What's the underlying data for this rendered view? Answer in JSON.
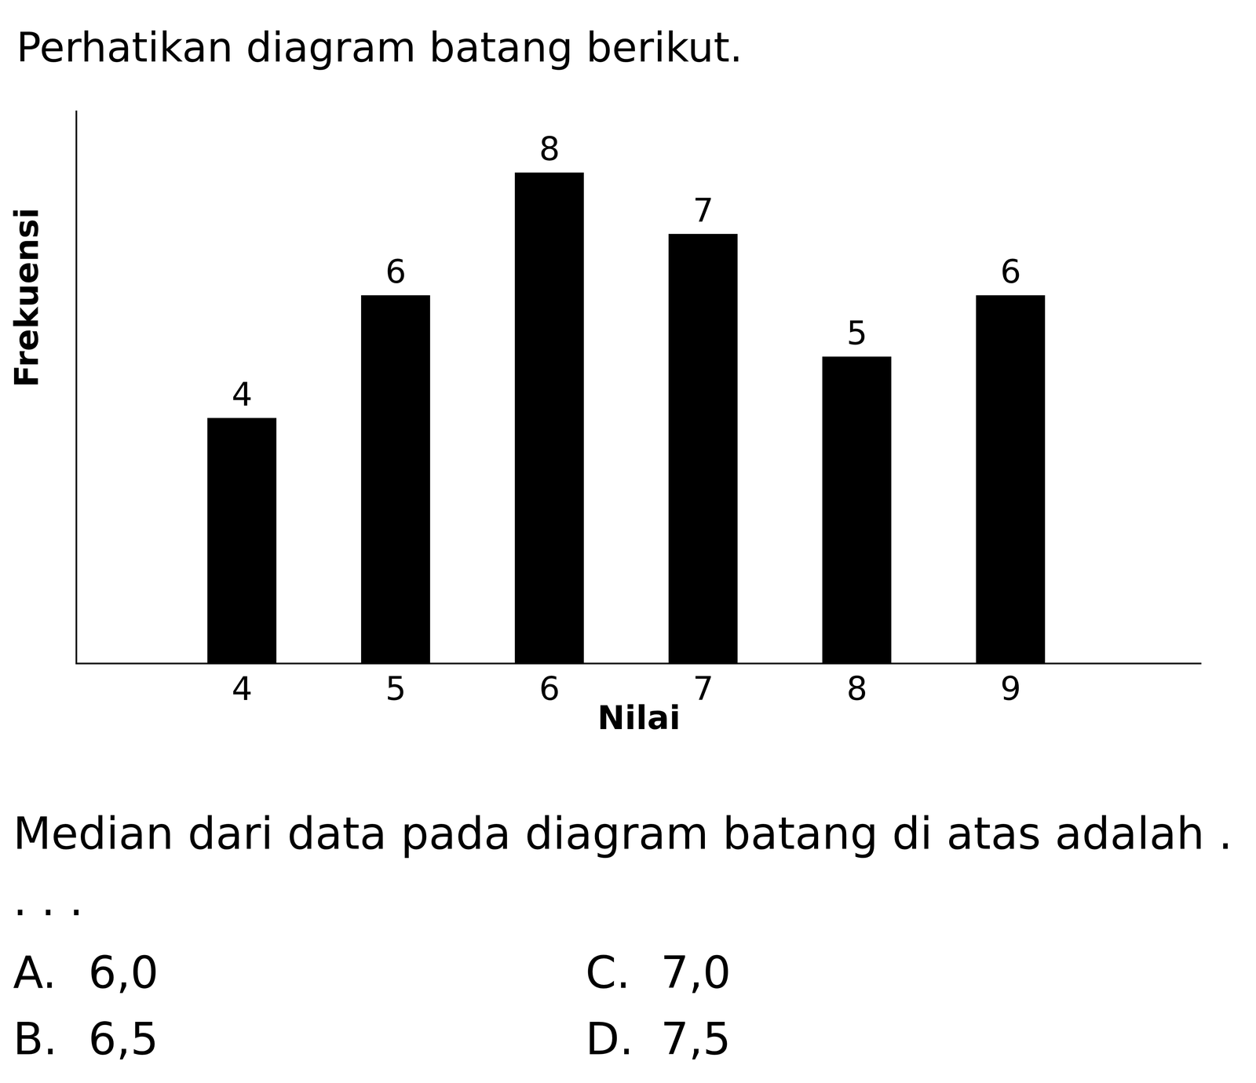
{
  "heading": "Perhatikan diagram batang berikut.",
  "chart_data": {
    "type": "bar",
    "x_label": "Nilai",
    "y_label": "Frekuensi",
    "categories": [
      "4",
      "5",
      "6",
      "7",
      "8",
      "9"
    ],
    "values": [
      4,
      6,
      8,
      7,
      5,
      6
    ],
    "color": "#000000",
    "ylim": [
      0,
      9
    ],
    "data_labels": true,
    "tick_labels": "x",
    "grid": false
  },
  "question": "Median dari data pada diagram batang di atas adalah . . . .",
  "options": [
    {
      "letter": "A.",
      "text": "6,0"
    },
    {
      "letter": "B.",
      "text": "6,5"
    },
    {
      "letter": "C.",
      "text": "7,0"
    },
    {
      "letter": "D.",
      "text": "7,5"
    }
  ]
}
